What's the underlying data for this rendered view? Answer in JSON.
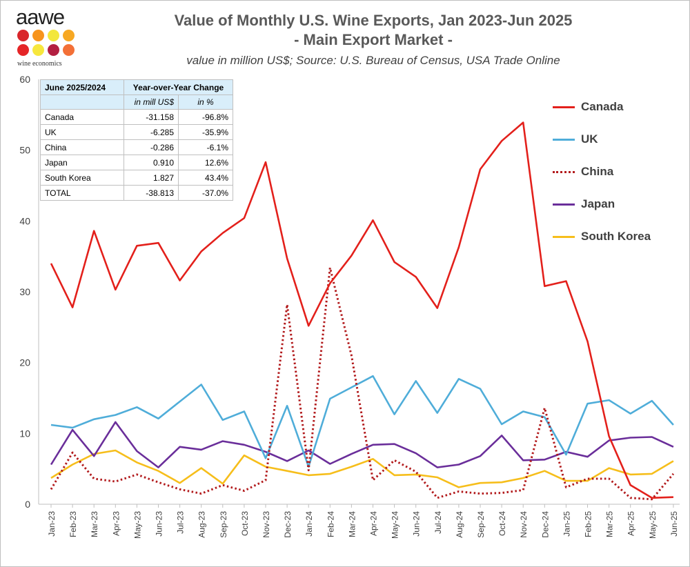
{
  "logo": {
    "text": "aawe",
    "subtext": "wine economics",
    "dot_colors": [
      "#d9262b",
      "#f7941d",
      "#f3e73b",
      "#f7a823",
      "#e52527",
      "#f7e73d",
      "#b31f41",
      "#f37037"
    ]
  },
  "header": {
    "title": "Value of Monthly U.S. Wine Exports, Jan 2023-Jun 2025",
    "subtitle": "- Main Export Market -",
    "source": "value in million US$; Source: U.S. Bureau of Census, USA Trade Online"
  },
  "table": {
    "header": [
      "June 2025/2024",
      "Year-over-Year Change"
    ],
    "subheader": [
      "",
      "in mill US$",
      "in %"
    ],
    "rows": [
      {
        "name": "Canada",
        "mill": "-31.158",
        "pct": "-96.8%"
      },
      {
        "name": "UK",
        "mill": "-6.285",
        "pct": "-35.9%"
      },
      {
        "name": "China",
        "mill": "-0.286",
        "pct": "-6.1%"
      },
      {
        "name": "Japan",
        "mill": "0.910",
        "pct": "12.6%"
      },
      {
        "name": "South Korea",
        "mill": "1.827",
        "pct": "43.4%"
      },
      {
        "name": "TOTAL",
        "mill": "-38.813",
        "pct": "-37.0%"
      }
    ]
  },
  "chart_data": {
    "type": "line",
    "title": "Value of Monthly U.S. Wine Exports, Jan 2023-Jun 2025",
    "subtitle": "- Main Export Market -",
    "ylim": [
      0,
      60
    ],
    "yticks": [
      "0",
      "10",
      "20",
      "30",
      "40",
      "50",
      "60"
    ],
    "grid": false,
    "legend_position": "right",
    "categories": [
      "Jan-23",
      "Feb-23",
      "Mar-23",
      "Apr-23",
      "May-23",
      "Jun-23",
      "Jul-23",
      "Aug-23",
      "Sep-23",
      "Oct-23",
      "Nov-23",
      "Dec-23",
      "Jan-24",
      "Feb-24",
      "Mar-24",
      "Apr-24",
      "May-24",
      "Jun-24",
      "Jul-24",
      "Aug-24",
      "Sep-24",
      "Oct-24",
      "Nov-24",
      "Dec-24",
      "Jan-25",
      "Feb-25",
      "Mar-25",
      "Apr-25",
      "May-25",
      "Jun-25"
    ],
    "series": [
      {
        "name": "Canada",
        "color": "#e3201b",
        "style": "solid",
        "values": [
          34.0,
          27.8,
          38.6,
          30.3,
          36.5,
          36.9,
          31.6,
          35.7,
          38.3,
          40.4,
          48.3,
          34.7,
          25.2,
          31.2,
          35.1,
          40.1,
          34.2,
          32.1,
          27.7,
          36.3,
          47.3,
          51.3,
          53.9,
          30.8,
          31.5,
          23.0,
          9.6,
          2.7,
          0.9,
          1.0
        ]
      },
      {
        "name": "UK",
        "color": "#4fadd9",
        "style": "solid",
        "values": [
          11.2,
          10.8,
          12.0,
          12.6,
          13.7,
          12.1,
          14.5,
          16.9,
          11.9,
          13.1,
          6.5,
          13.9,
          5.3,
          14.9,
          16.5,
          18.1,
          12.7,
          17.4,
          12.9,
          17.7,
          16.3,
          11.3,
          13.1,
          12.3,
          7.0,
          14.2,
          14.7,
          12.8,
          14.6,
          11.2
        ]
      },
      {
        "name": "China",
        "color": "#b21a1c",
        "style": "dotted",
        "values": [
          2.1,
          7.3,
          3.6,
          3.2,
          4.2,
          3.1,
          2.1,
          1.5,
          2.7,
          1.9,
          3.4,
          28.2,
          4.8,
          33.4,
          21.0,
          3.4,
          6.2,
          4.6,
          0.9,
          1.8,
          1.5,
          1.6,
          2.0,
          13.6,
          2.4,
          3.6,
          3.6,
          0.9,
          0.7,
          4.3
        ]
      },
      {
        "name": "Japan",
        "color": "#6a2e9a",
        "style": "solid",
        "values": [
          5.6,
          10.5,
          6.8,
          11.6,
          7.5,
          5.2,
          8.1,
          7.7,
          8.9,
          8.4,
          7.4,
          6.1,
          7.6,
          5.7,
          7.1,
          8.4,
          8.5,
          7.2,
          5.2,
          5.6,
          6.8,
          9.7,
          6.2,
          6.3,
          7.4,
          6.7,
          9.0,
          9.4,
          9.5,
          8.1
        ]
      },
      {
        "name": "South Korea",
        "color": "#f6be1b",
        "style": "solid",
        "values": [
          3.7,
          5.6,
          7.1,
          7.6,
          5.9,
          4.7,
          3.0,
          5.1,
          2.9,
          6.9,
          5.3,
          4.7,
          4.1,
          4.3,
          5.3,
          6.4,
          4.1,
          4.2,
          3.8,
          2.4,
          3.0,
          3.1,
          3.7,
          4.7,
          3.3,
          3.3,
          5.1,
          4.2,
          4.3,
          6.1
        ]
      }
    ]
  }
}
